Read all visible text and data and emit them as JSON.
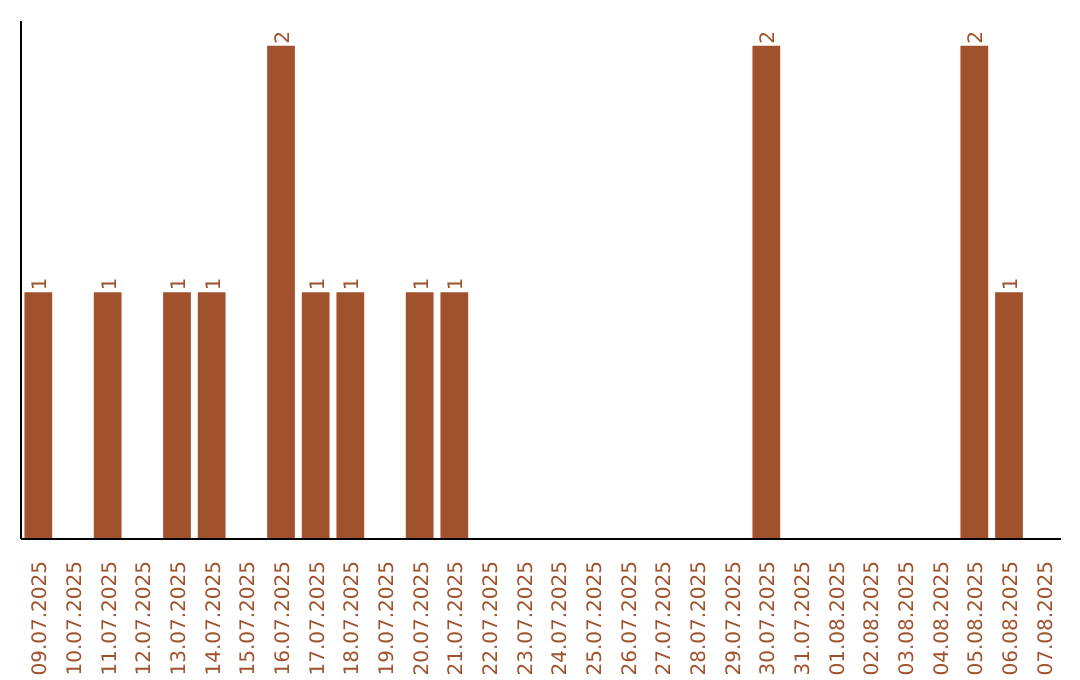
{
  "chart_data": {
    "type": "bar",
    "relative": false,
    "categories": [
      "09.07.2025",
      "10.07.2025",
      "11.07.2025",
      "12.07.2025",
      "13.07.2025",
      "14.07.2025",
      "15.07.2025",
      "16.07.2025",
      "17.07.2025",
      "18.07.2025",
      "19.07.2025",
      "20.07.2025",
      "21.07.2025",
      "22.07.2025",
      "23.07.2025",
      "24.07.2025",
      "25.07.2025",
      "26.07.2025",
      "27.07.2025",
      "28.07.2025",
      "29.07.2025",
      "30.07.2025",
      "31.07.2025",
      "01.08.2025",
      "02.08.2025",
      "03.08.2025",
      "04.08.2025",
      "05.08.2025",
      "06.08.2025",
      "07.08.2025"
    ],
    "values": [
      1,
      0,
      1,
      0,
      1,
      1,
      0,
      2,
      1,
      1,
      0,
      1,
      1,
      0,
      0,
      0,
      0,
      0,
      0,
      0,
      0,
      2,
      0,
      0,
      0,
      0,
      0,
      2,
      1,
      0
    ],
    "value_labels": [
      "1",
      null,
      "1",
      null,
      "1",
      "1",
      null,
      "2",
      "1",
      "1",
      null,
      "1",
      "1",
      null,
      null,
      null,
      null,
      null,
      null,
      null,
      null,
      "2",
      null,
      null,
      null,
      null,
      null,
      "2",
      "1",
      null
    ],
    "color": "#a0522d",
    "grid": false,
    "tick_labels": "x"
  }
}
